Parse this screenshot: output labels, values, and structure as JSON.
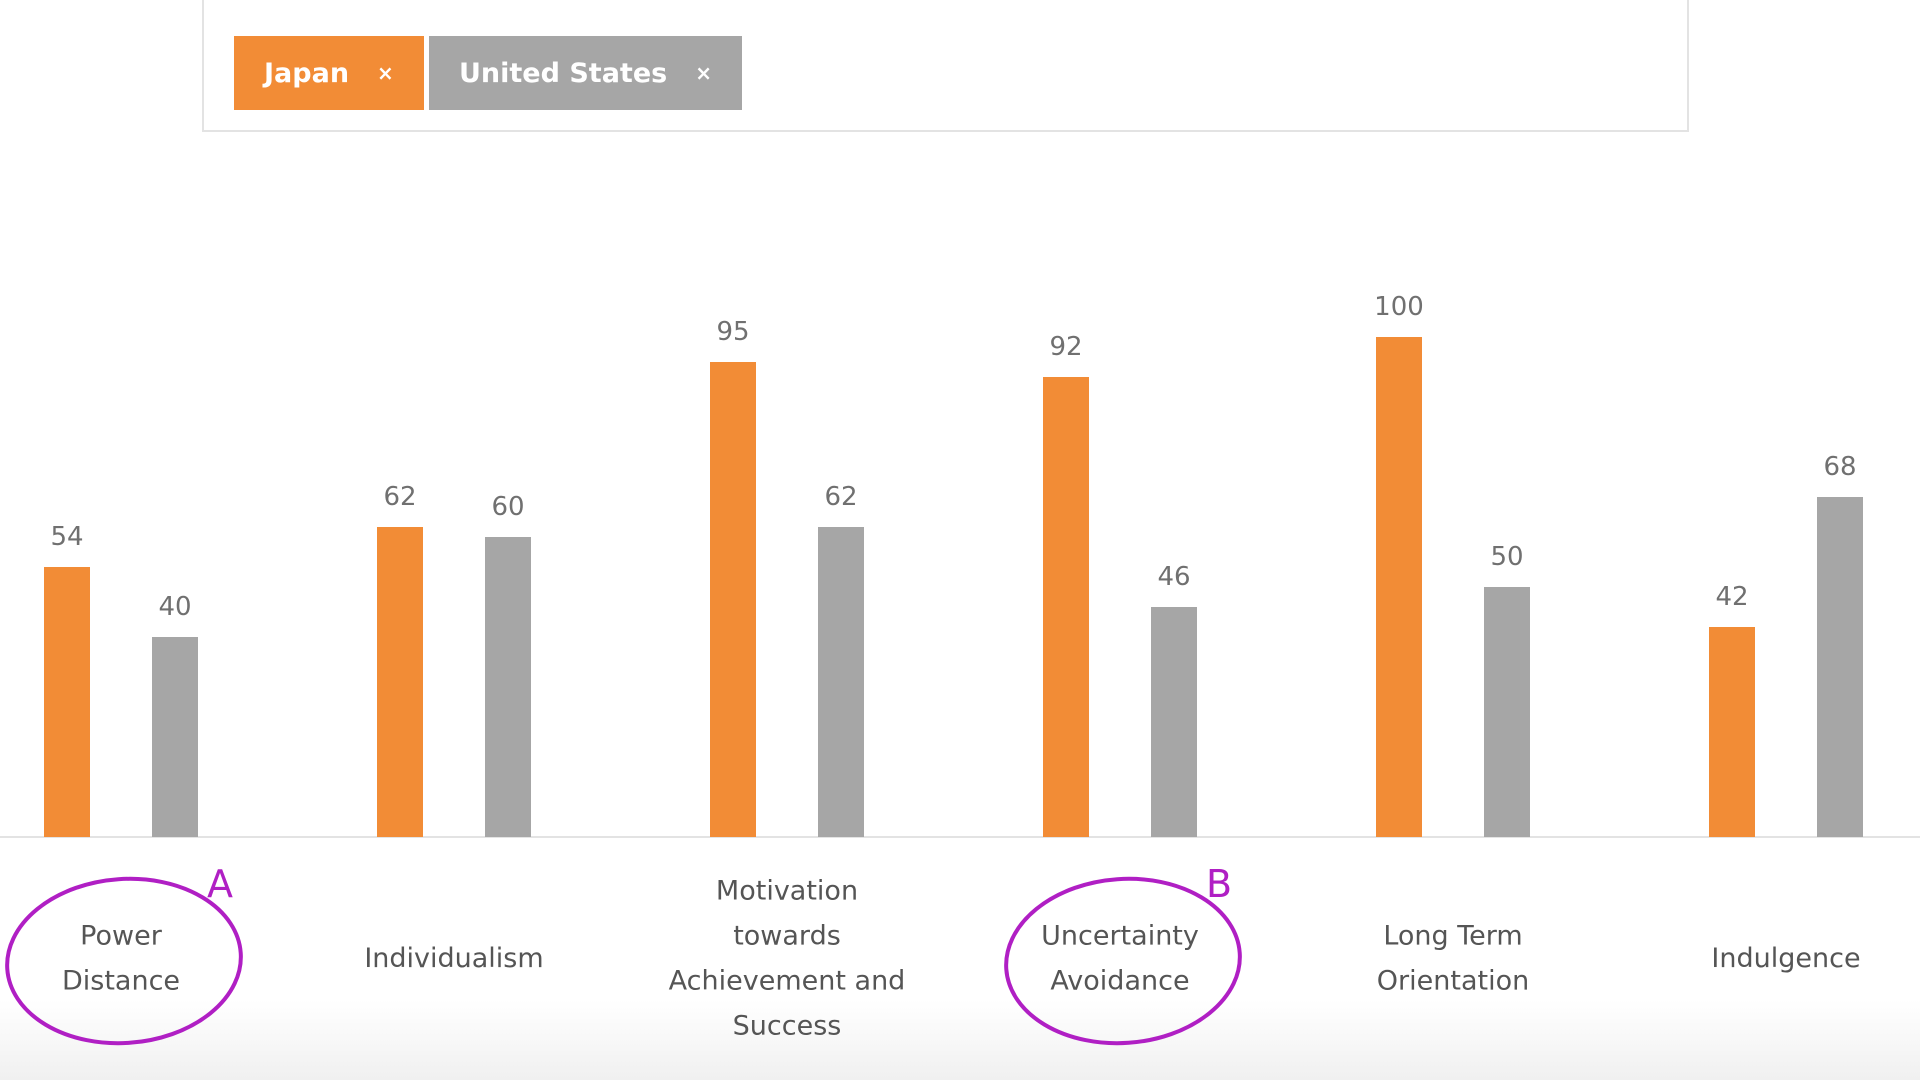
{
  "filters": [
    {
      "label": "Japan",
      "close": "×",
      "color": "#F28C36"
    },
    {
      "label": "United States",
      "close": "×",
      "color": "#A6A6A6"
    }
  ],
  "chart_data": {
    "type": "bar",
    "categories": [
      [
        "Power",
        "Distance"
      ],
      [
        "Individualism"
      ],
      [
        "Motivation",
        "towards",
        "Achievement and",
        "Success"
      ],
      [
        "Uncertainty",
        "Avoidance"
      ],
      [
        "Long Term",
        "Orientation"
      ],
      [
        "Indulgence"
      ]
    ],
    "series": [
      {
        "name": "Japan",
        "color": "#F28C36",
        "values": [
          54,
          62,
          95,
          92,
          100,
          42
        ]
      },
      {
        "name": "United States",
        "color": "#A6A6A6",
        "values": [
          40,
          60,
          62,
          46,
          50,
          68
        ]
      }
    ],
    "ylim": [
      0,
      100
    ],
    "grid": false,
    "annotations": [
      {
        "letter": "A",
        "category_index": 0,
        "color": "#B01FC4"
      },
      {
        "letter": "B",
        "category_index": 3,
        "color": "#B01FC4"
      }
    ]
  }
}
